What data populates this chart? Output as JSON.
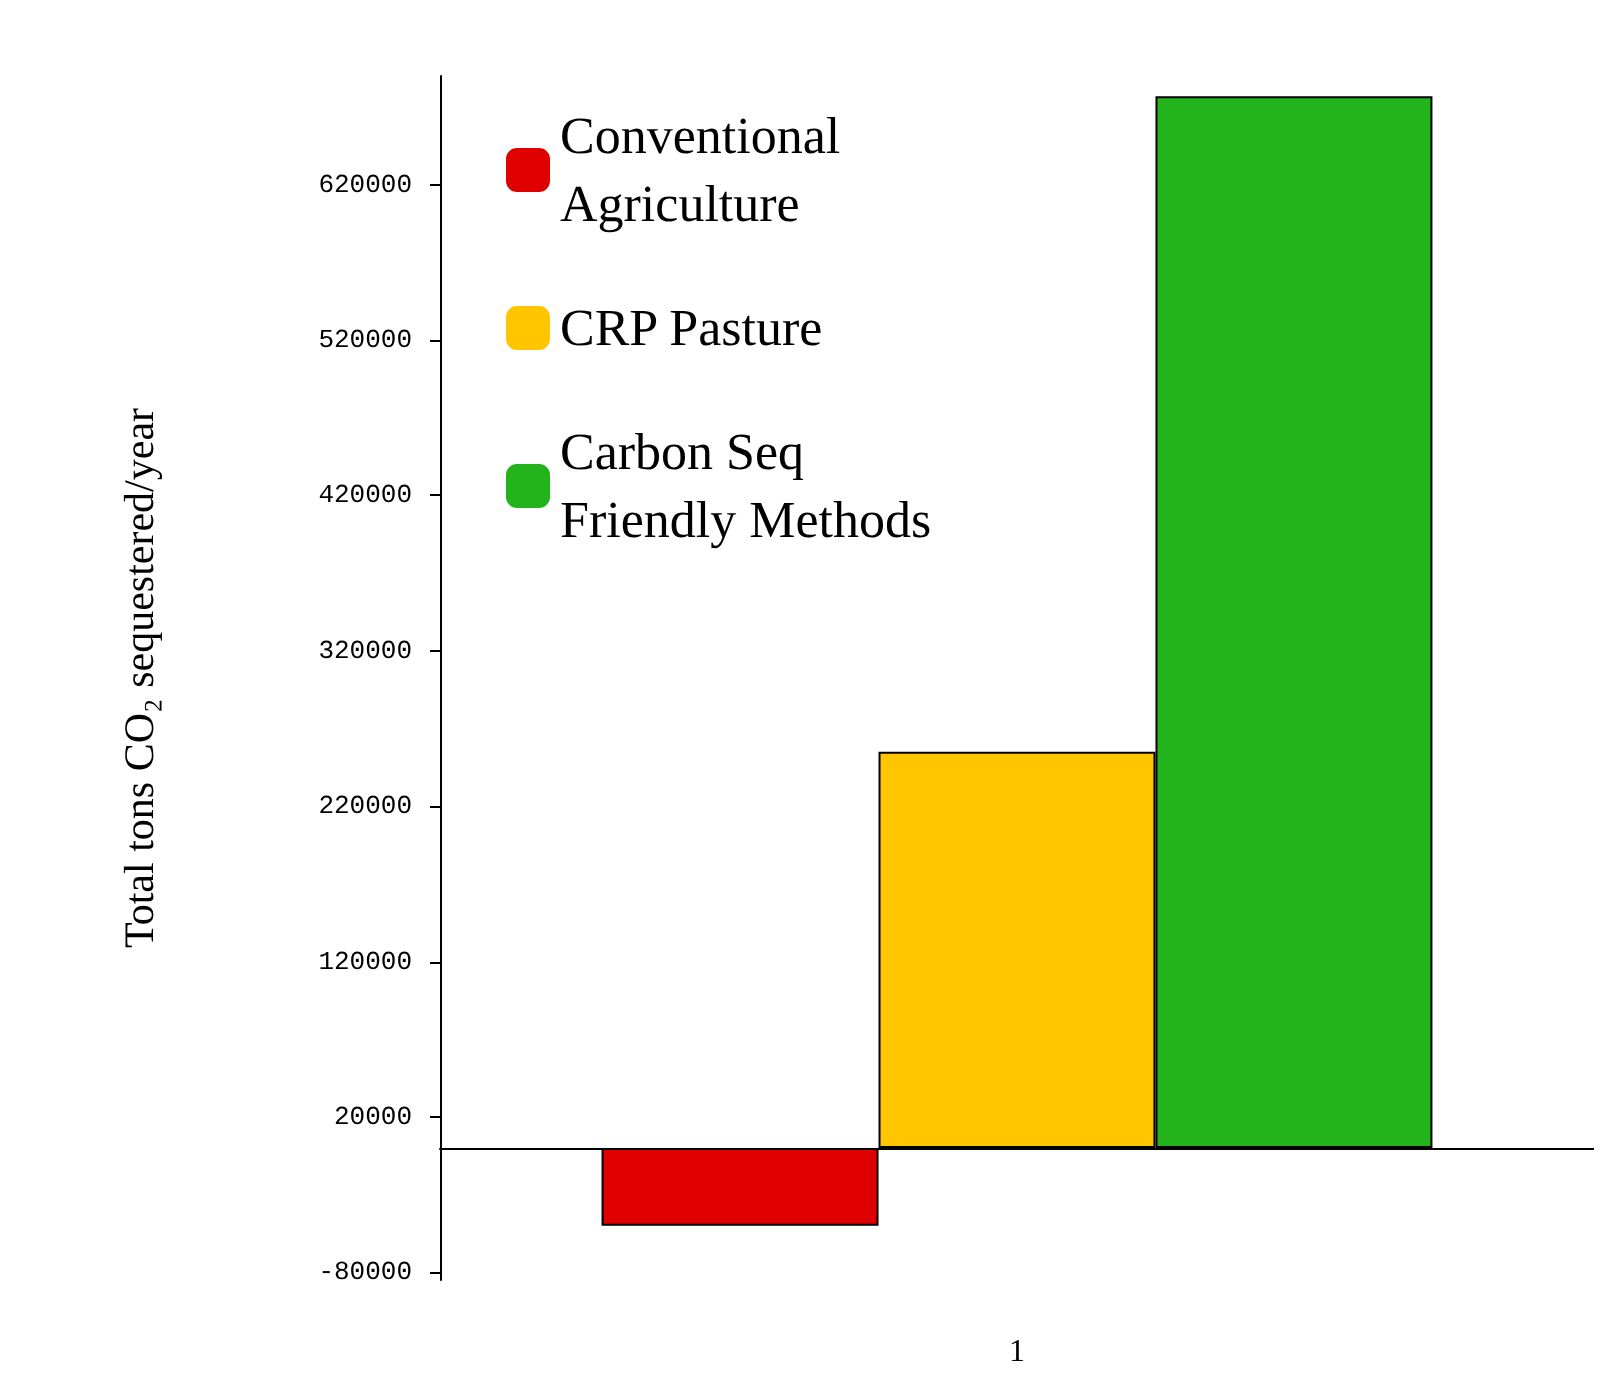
{
  "chart_data": {
    "type": "bar",
    "ylabel": "Total tons CO₂ sequestered/year",
    "categories": [
      "1"
    ],
    "series": [
      {
        "name": "Conventional Agriculture",
        "color": "#e00000",
        "values": [
          -50000
        ]
      },
      {
        "name": "CRP Pasture",
        "color": "#ffc600",
        "values": [
          255000
        ]
      },
      {
        "name": "Carbon Seq Friendly Methods",
        "color": "#22b41a",
        "values": [
          677000
        ]
      }
    ],
    "ylim": [
      -85000,
      690000
    ],
    "yticks": [
      -80000,
      20000,
      120000,
      220000,
      320000,
      420000,
      520000,
      620000
    ],
    "grid": false,
    "legend": "top left"
  }
}
